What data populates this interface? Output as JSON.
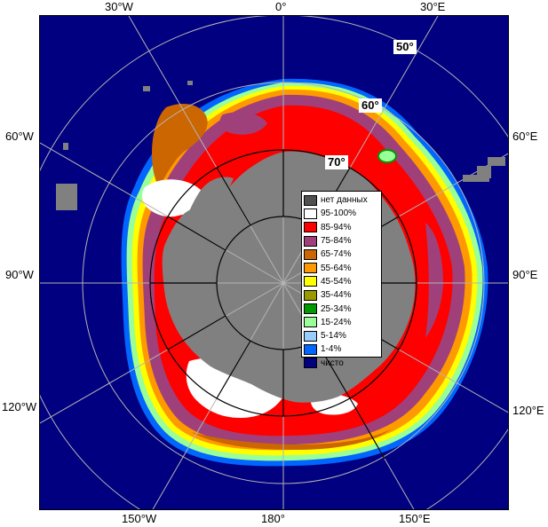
{
  "map": {
    "longitude_labels": {
      "top_30w": "30°W",
      "top_0": "0°",
      "top_30e": "30°E",
      "left_60w": "60°W",
      "left_90w": "90°W",
      "left_120w": "120°W",
      "right_60e": "60°E",
      "right_90e": "90°E",
      "right_120e": "120°E",
      "bottom_150w": "150°W",
      "bottom_180": "180°",
      "bottom_150e": "150°E"
    },
    "latitude_labels": {
      "lat_50": "50°",
      "lat_60": "60°",
      "lat_70": "70°"
    },
    "colors": {
      "ocean": "#000080",
      "land": "#808080",
      "no_data": "#505050",
      "grid": "#b4b4b4",
      "ice_95_100": "#ffffff",
      "ice_85_94": "#ff0000",
      "ice_75_84": "#a0407a",
      "ice_65_74": "#cc6600",
      "ice_55_64": "#ff9900",
      "ice_45_54": "#ffff00",
      "ice_35_44": "#999900",
      "ice_25_34": "#009900",
      "ice_15_24": "#99ff99",
      "ice_5_14": "#99ccff",
      "ice_1_4": "#0066ff"
    }
  },
  "legend": {
    "items": [
      {
        "label": "нет данных",
        "color": "#505050"
      },
      {
        "label": "95-100%",
        "color": "#ffffff"
      },
      {
        "label": "85-94%",
        "color": "#ff0000"
      },
      {
        "label": "75-84%",
        "color": "#a0407a"
      },
      {
        "label": "65-74%",
        "color": "#cc6600"
      },
      {
        "label": "55-64%",
        "color": "#ff9900"
      },
      {
        "label": "45-54%",
        "color": "#ffff00"
      },
      {
        "label": "35-44%",
        "color": "#999900"
      },
      {
        "label": "25-34%",
        "color": "#009900"
      },
      {
        "label": "15-24%",
        "color": "#99ff99"
      },
      {
        "label": "5-14%",
        "color": "#99ccff"
      },
      {
        "label": "1-4%",
        "color": "#0066ff"
      },
      {
        "label": "чисто",
        "color": "#000080"
      }
    ]
  }
}
